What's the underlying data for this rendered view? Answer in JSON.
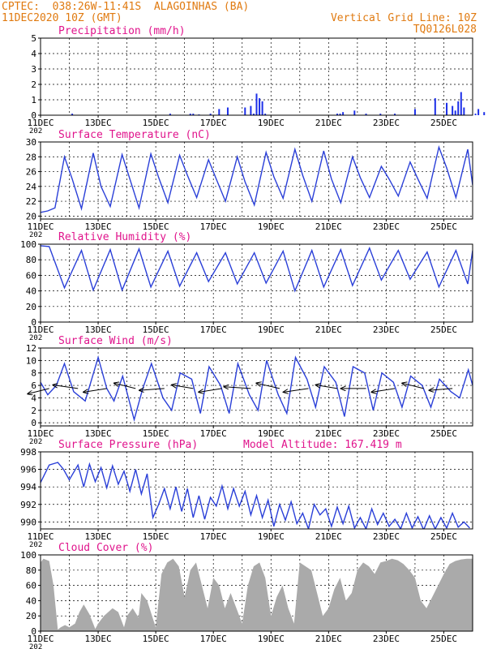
{
  "header": {
    "line1": "CPTEC:  038:26W-11:41S  ALAGOINHAS (BA)",
    "line2": "11DEC2020 10Z (GMT)",
    "right1": "Vertical Grid Line: 10Z",
    "right2": "TQ0126L028"
  },
  "colors": {
    "header": "#e07a10",
    "title": "#e0148c",
    "line": "#2a3fd8",
    "bar": "#1c2fe8",
    "cloud": "#aaaaaa",
    "grid": "#000000"
  },
  "x_axis": {
    "start": "11DEC",
    "end": "26DEC",
    "labels": [
      "11DEC",
      "13DEC",
      "15DEC",
      "17DEC",
      "19DEC",
      "21DEC",
      "23DEC",
      "25DEC"
    ],
    "year_fragment": "202"
  },
  "chart_data": [
    {
      "type": "bar",
      "title": "Precipitation (mm/h)",
      "ylim": [
        0,
        5
      ],
      "yticks": [
        0,
        1,
        2,
        3,
        4,
        5
      ],
      "days": [
        1.1,
        4.5,
        5.2,
        5.3,
        5.5,
        5.9,
        6.2,
        6.5,
        7.1,
        7.3,
        7.4,
        7.5,
        7.6,
        7.7,
        7.8,
        10.3,
        10.4,
        10.5,
        10.9,
        11.3,
        11.8,
        12.3,
        13.0,
        13.7,
        14.1,
        14.3,
        14.4,
        14.5,
        14.6,
        14.7,
        15.1,
        15.2,
        15.4
      ],
      "values": [
        0.1,
        0.1,
        0.1,
        0.1,
        0.05,
        0.1,
        0.4,
        0.5,
        0.5,
        0.6,
        0.1,
        1.4,
        1.1,
        0.9,
        0.1,
        0.1,
        0.1,
        0.2,
        0.3,
        0.1,
        0.1,
        0.1,
        0.4,
        1.1,
        0.8,
        0.6,
        0.3,
        0.9,
        1.5,
        0.5,
        0.1,
        0.4,
        0.2
      ]
    },
    {
      "type": "line",
      "title": "Surface Temperature (nC)",
      "ylim": [
        19.6,
        30
      ],
      "yticks": [
        20,
        22,
        24,
        26,
        28,
        30
      ],
      "days": [
        0,
        0.25,
        0.5,
        0.83,
        1.1,
        1.42,
        1.83,
        2.1,
        2.42,
        2.83,
        3.1,
        3.42,
        3.83,
        4.1,
        4.42,
        4.83,
        5.1,
        5.42,
        5.83,
        6.1,
        6.42,
        6.83,
        7.1,
        7.42,
        7.83,
        8.1,
        8.42,
        8.83,
        9.1,
        9.42,
        9.83,
        10.1,
        10.42,
        10.83,
        11.1,
        11.42,
        11.83,
        12.1,
        12.42,
        12.83,
        13.1,
        13.42,
        13.83,
        14.1,
        14.42,
        14.83,
        15.0
      ],
      "values": [
        20.5,
        20.7,
        21.1,
        28.0,
        25.0,
        21.0,
        28.5,
        24.0,
        21.3,
        28.3,
        25.0,
        21.1,
        28.4,
        25.2,
        21.8,
        28.2,
        25.5,
        22.5,
        27.6,
        25.0,
        22.0,
        28.0,
        24.6,
        21.5,
        28.6,
        25.3,
        22.4,
        29.0,
        25.5,
        22.0,
        28.8,
        25.0,
        21.8,
        28.0,
        25.2,
        22.5,
        26.7,
        25.0,
        22.7,
        27.3,
        25.0,
        22.4,
        29.3,
        26.5,
        22.5,
        29.0,
        24.2
      ]
    },
    {
      "type": "line",
      "title": "Relative Humidity (%)",
      "ylim": [
        0,
        100
      ],
      "yticks": [
        0,
        20,
        40,
        60,
        80,
        100
      ],
      "days": [
        0,
        0.3,
        0.83,
        1.42,
        1.83,
        2.42,
        2.83,
        3.42,
        3.83,
        4.42,
        4.83,
        5.42,
        5.83,
        6.42,
        6.83,
        7.42,
        7.83,
        8.42,
        8.83,
        9.42,
        9.83,
        10.42,
        10.83,
        11.42,
        11.83,
        12.42,
        12.83,
        13.42,
        13.83,
        14.42,
        14.83,
        15.0
      ],
      "values": [
        98,
        97,
        44,
        92,
        41,
        93,
        41,
        94,
        45,
        91,
        46,
        89,
        52,
        89,
        49,
        89,
        50,
        91,
        40,
        92,
        45,
        93,
        47,
        95,
        54,
        92,
        55,
        90,
        45,
        92,
        49,
        92
      ]
    },
    {
      "type": "line",
      "title": "Surface Wind (m/s)",
      "ylim": [
        -0.5,
        12
      ],
      "yticks": [
        0,
        2,
        4,
        6,
        8,
        10,
        12
      ],
      "days": [
        0,
        0.25,
        0.55,
        0.83,
        1.15,
        1.55,
        2.0,
        2.3,
        2.55,
        2.85,
        3.25,
        3.55,
        3.85,
        4.25,
        4.55,
        4.85,
        5.25,
        5.55,
        5.85,
        6.25,
        6.55,
        6.85,
        7.25,
        7.55,
        7.85,
        8.25,
        8.55,
        8.85,
        9.25,
        9.55,
        9.85,
        10.25,
        10.55,
        10.85,
        11.25,
        11.55,
        11.85,
        12.25,
        12.55,
        12.85,
        13.25,
        13.55,
        13.85,
        14.25,
        14.55,
        14.85,
        15.0
      ],
      "values": [
        6.5,
        4.5,
        6.0,
        9.5,
        5.0,
        3.5,
        10.5,
        5.5,
        3.5,
        7.5,
        0.5,
        5.5,
        9.5,
        4.0,
        2.0,
        8.0,
        7.0,
        1.5,
        9.0,
        6.0,
        1.5,
        9.5,
        4.5,
        2.0,
        10.0,
        4.5,
        1.5,
        10.5,
        7.0,
        2.5,
        9.0,
        6.5,
        1.0,
        9.0,
        8.0,
        2.0,
        8.0,
        6.5,
        2.5,
        7.5,
        6.0,
        2.5,
        7.0,
        5.0,
        4.0,
        8.5,
        6.0
      ],
      "vector_days": [
        0.3,
        1.3,
        2.3,
        3.3,
        4.3,
        5.3,
        6.3,
        7.3,
        8.3,
        9.3,
        10.3,
        11.3,
        12.3,
        13.3,
        14.3
      ],
      "vector_u": [
        -1.2,
        -1.4,
        -1.3,
        -1.2,
        -1.4,
        -1.2,
        -1.3,
        -1.5,
        -1.3,
        -1.4,
        -1.2,
        -1.4,
        -1.3,
        -1.2,
        -1.3
      ],
      "vector_v": [
        -0.3,
        0.2,
        -0.2,
        0.3,
        -0.1,
        0.2,
        -0.2,
        0.1,
        0.3,
        -0.2,
        0.2,
        0.0,
        -0.2,
        0.3,
        -0.1
      ]
    },
    {
      "type": "line",
      "title": "Surface Pressure (hPa)",
      "subtitle": "Model Altitude: 167.419 m",
      "ylim": [
        989.2,
        998
      ],
      "yticks": [
        990,
        992,
        994,
        996,
        998
      ],
      "days": [
        0,
        0.3,
        0.6,
        0.8,
        1.0,
        1.3,
        1.5,
        1.7,
        1.9,
        2.1,
        2.3,
        2.5,
        2.7,
        2.9,
        3.1,
        3.3,
        3.5,
        3.7,
        3.9,
        4.1,
        4.3,
        4.5,
        4.7,
        4.9,
        5.1,
        5.3,
        5.5,
        5.7,
        5.9,
        6.1,
        6.3,
        6.5,
        6.7,
        6.9,
        7.1,
        7.3,
        7.5,
        7.7,
        7.9,
        8.1,
        8.3,
        8.5,
        8.7,
        8.9,
        9.1,
        9.3,
        9.5,
        9.7,
        9.9,
        10.1,
        10.3,
        10.5,
        10.7,
        10.9,
        11.1,
        11.3,
        11.5,
        11.7,
        11.9,
        12.1,
        12.3,
        12.5,
        12.7,
        12.9,
        13.1,
        13.3,
        13.5,
        13.7,
        13.9,
        14.1,
        14.3,
        14.5,
        14.7,
        14.9
      ],
      "values": [
        994.5,
        996.5,
        996.8,
        996.0,
        994.8,
        996.5,
        994.0,
        996.6,
        994.6,
        996.2,
        993.9,
        996.4,
        994.3,
        995.8,
        993.5,
        996.0,
        993.2,
        995.5,
        990.5,
        992.0,
        993.8,
        991.5,
        994.0,
        991.2,
        993.8,
        990.5,
        993.0,
        990.3,
        992.8,
        991.8,
        994.1,
        991.5,
        993.8,
        991.8,
        993.5,
        990.8,
        993.0,
        990.5,
        992.5,
        989.5,
        992.0,
        990.2,
        992.3,
        989.8,
        991.0,
        989.2,
        992.0,
        990.8,
        991.5,
        989.5,
        991.7,
        989.8,
        991.8,
        989.3,
        990.5,
        989.2,
        991.5,
        989.7,
        991.0,
        989.5,
        990.3,
        989.2,
        991.0,
        989.3,
        990.6,
        989.1,
        990.7,
        989.2,
        990.5,
        989.3,
        991.0,
        989.4,
        990.0,
        989.3
      ]
    },
    {
      "type": "area",
      "title": "Cloud Cover (%)",
      "ylim": [
        0,
        100
      ],
      "yticks": [
        0,
        20,
        40,
        60,
        80,
        100
      ],
      "days": [
        0,
        0.1,
        0.3,
        0.45,
        0.6,
        0.7,
        0.85,
        1.0,
        1.2,
        1.35,
        1.5,
        1.7,
        1.9,
        2.0,
        2.2,
        2.5,
        2.7,
        2.9,
        3.0,
        3.2,
        3.4,
        3.5,
        3.7,
        4.0,
        4.2,
        4.4,
        4.6,
        4.8,
        5.0,
        5.2,
        5.4,
        5.6,
        5.8,
        6.0,
        6.2,
        6.4,
        6.6,
        6.8,
        7.0,
        7.2,
        7.4,
        7.6,
        7.8,
        8.0,
        8.2,
        8.4,
        8.6,
        8.8,
        9.0,
        9.2,
        9.4,
        9.6,
        9.8,
        10.0,
        10.2,
        10.4,
        10.6,
        10.8,
        11.0,
        11.2,
        11.4,
        11.6,
        11.8,
        12.0,
        12.2,
        12.4,
        12.6,
        12.8,
        13.0,
        13.2,
        13.4,
        13.6,
        13.8,
        14.0,
        14.2,
        14.4,
        14.6,
        14.8,
        15.0
      ],
      "values": [
        90,
        95,
        92,
        60,
        2,
        5,
        8,
        5,
        10,
        25,
        35,
        22,
        3,
        10,
        20,
        30,
        25,
        5,
        20,
        30,
        18,
        50,
        40,
        5,
        75,
        90,
        95,
        85,
        45,
        80,
        90,
        60,
        30,
        70,
        60,
        30,
        50,
        30,
        10,
        60,
        85,
        90,
        70,
        20,
        45,
        60,
        30,
        10,
        90,
        85,
        80,
        50,
        20,
        30,
        55,
        70,
        40,
        50,
        80,
        90,
        85,
        75,
        90,
        92,
        95,
        93,
        88,
        80,
        70,
        40,
        30,
        45,
        60,
        75,
        88,
        92,
        94,
        95,
        95
      ]
    }
  ]
}
